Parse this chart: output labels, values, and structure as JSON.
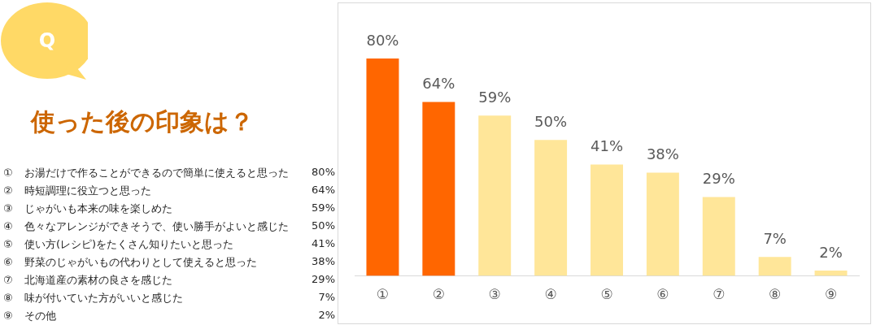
{
  "chart_data": {
    "type": "bar",
    "title": "使った後の印象は？",
    "subtitle": "Q",
    "categories": [
      "①",
      "②",
      "③",
      "④",
      "⑤",
      "⑥",
      "⑦",
      "⑧",
      "⑨"
    ],
    "values": [
      80,
      64,
      59,
      50,
      41,
      38,
      29,
      7,
      2
    ],
    "value_labels": [
      "80%",
      "64%",
      "59%",
      "50%",
      "41%",
      "38%",
      "29%",
      "7%",
      "2%"
    ],
    "colors": [
      "#ff6600",
      "#ff6600",
      "#ffe699",
      "#ffe699",
      "#ffe699",
      "#ffe699",
      "#ffe699",
      "#ffe699",
      "#ffe699"
    ],
    "data_labels": true,
    "grid": false,
    "legend": false,
    "annotations": [
      "お湯だけで作ることができるので簡単に使えると思った",
      "時短調理に役立つと思った",
      "じゃがいも本来の味を楽しめた",
      "色々なアレンジができそうで、使い勝手がよいと感じた",
      "使い方(レシピ)をたくさん知りたいと思った",
      "野菜のじゃがいもの代わりとして使えると思った",
      "北海道産の素材の良さを感じた",
      "味が付いていた方がいいと感じた",
      "その他"
    ]
  }
}
